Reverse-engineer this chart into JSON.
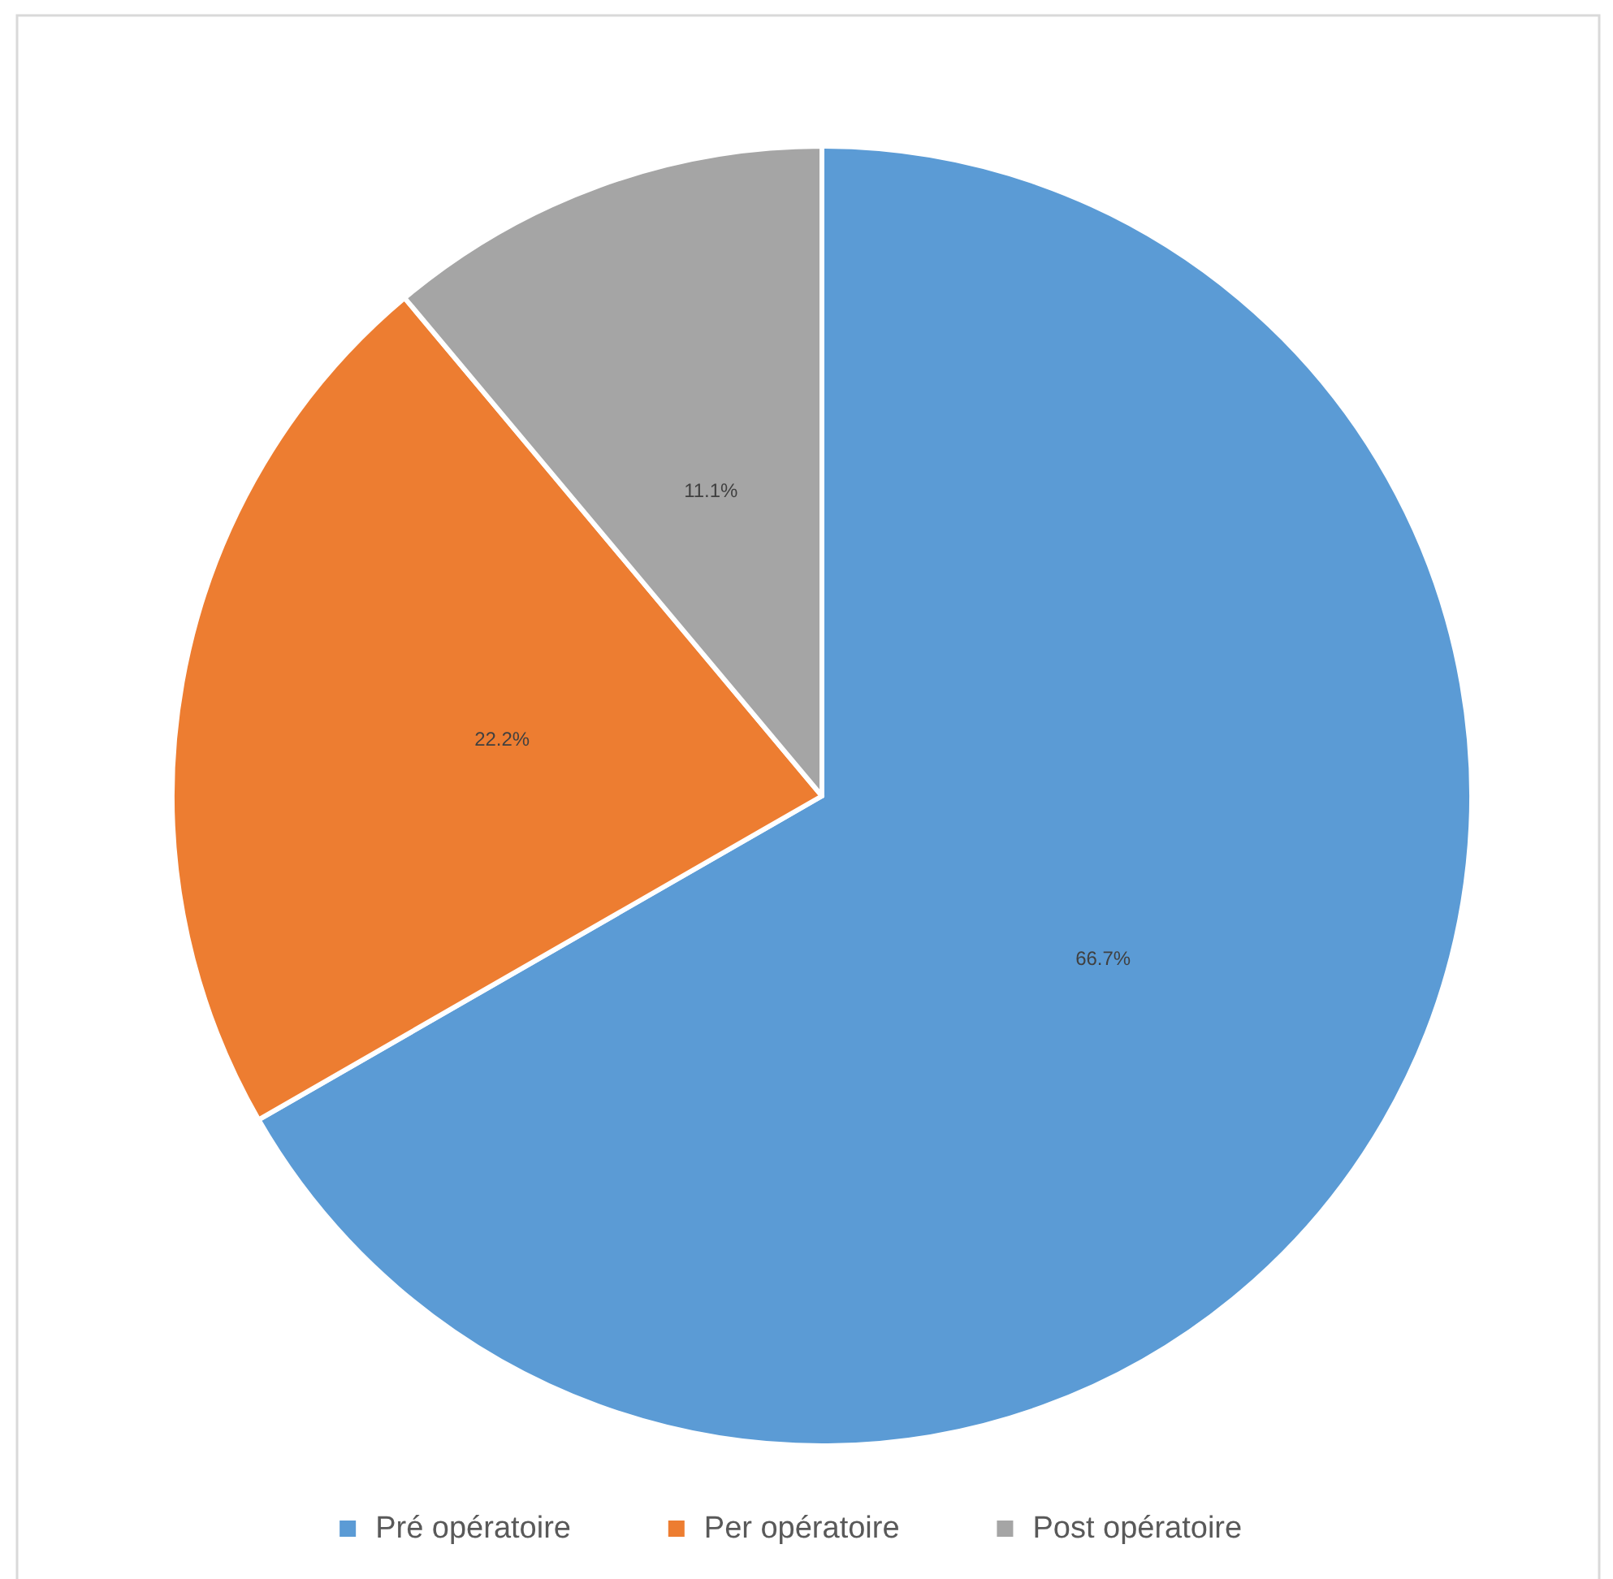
{
  "chart_data": {
    "type": "pie",
    "categories": [
      "Pré opératoire",
      "Per opératoire",
      "Post opératoire"
    ],
    "values": [
      66.7,
      22.2,
      11.1
    ],
    "colors": [
      "#5b9bd5",
      "#ed7d31",
      "#a5a5a5"
    ],
    "value_labels": [
      "66.7%",
      "22.2%",
      "11.1%"
    ],
    "legend": "bottom"
  }
}
